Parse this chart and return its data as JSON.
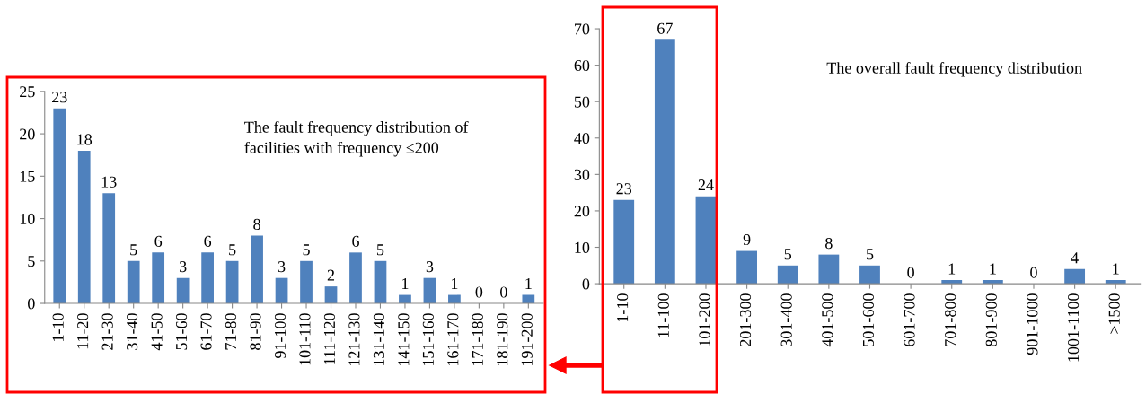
{
  "chart_data": [
    {
      "type": "bar",
      "categories": [
        "1-10",
        "11-20",
        "21-30",
        "31-40",
        "41-50",
        "51-60",
        "61-70",
        "71-80",
        "81-90",
        "91-100",
        "101-110",
        "111-120",
        "121-130",
        "131-140",
        "141-150",
        "151-160",
        "161-170",
        "171-180",
        "181-190",
        "191-200"
      ],
      "values": [
        23,
        18,
        13,
        5,
        6,
        3,
        6,
        5,
        8,
        3,
        5,
        2,
        6,
        5,
        1,
        3,
        1,
        0,
        0,
        1
      ],
      "color": "#4f81bd",
      "ylim": [
        0,
        25
      ],
      "yticks": [
        0,
        5,
        10,
        15,
        20,
        25
      ],
      "data_labels": true,
      "grid": false,
      "legend": false,
      "annotations": [
        "The fault frequency distribution of\nfacilities with frequency ≤200"
      ]
    },
    {
      "type": "bar",
      "categories": [
        "1-10",
        "11-100",
        "101-200",
        "201-300",
        "301-400",
        "401-500",
        "501-600",
        "601-700",
        "701-800",
        "801-900",
        "901-1000",
        "1001-1100",
        ">1500"
      ],
      "values": [
        23,
        67,
        24,
        9,
        5,
        8,
        5,
        0,
        1,
        1,
        0,
        4,
        1
      ],
      "color": "#4f81bd",
      "ylim": [
        0,
        70
      ],
      "yticks": [
        0,
        10,
        20,
        30,
        40,
        50,
        60,
        70
      ],
      "data_labels": true,
      "grid": false,
      "legend": false,
      "annotations": [
        "The overall fault frequency distribution"
      ]
    }
  ]
}
